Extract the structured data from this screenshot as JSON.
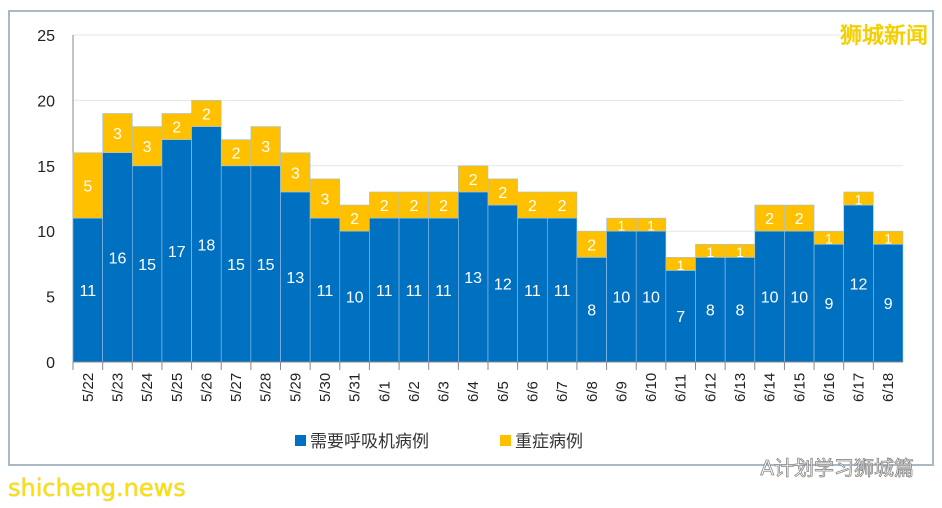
{
  "chart_data": {
    "type": "bar",
    "stacked": true,
    "categories": [
      "5/22",
      "5/23",
      "5/24",
      "5/25",
      "5/26",
      "5/27",
      "5/28",
      "5/29",
      "5/30",
      "5/31",
      "6/1",
      "6/2",
      "6/3",
      "6/4",
      "6/5",
      "6/6",
      "6/7",
      "6/8",
      "6/9",
      "6/10",
      "6/11",
      "6/12",
      "6/13",
      "6/14",
      "6/15",
      "6/16",
      "6/17",
      "6/18"
    ],
    "series": [
      {
        "name": "需要呼吸机病例",
        "color": "#0070c0",
        "values": [
          11,
          16,
          15,
          17,
          18,
          15,
          15,
          13,
          11,
          10,
          11,
          11,
          11,
          13,
          12,
          11,
          11,
          8,
          10,
          10,
          7,
          8,
          8,
          10,
          10,
          9,
          12,
          9
        ]
      },
      {
        "name": "重症病例",
        "color": "#ffc000",
        "values": [
          5,
          3,
          3,
          2,
          2,
          2,
          3,
          3,
          3,
          2,
          2,
          2,
          2,
          2,
          2,
          2,
          2,
          2,
          1,
          1,
          1,
          1,
          1,
          2,
          2,
          1,
          1,
          1
        ]
      }
    ],
    "ylim": [
      0,
      25
    ],
    "yticks": [
      0,
      5,
      10,
      15,
      20,
      25
    ],
    "grid": true,
    "legend": "bottom"
  },
  "watermarks": {
    "brand": "狮城新闻",
    "site": "shicheng.news",
    "wechat": "A计划学习狮城篇"
  }
}
